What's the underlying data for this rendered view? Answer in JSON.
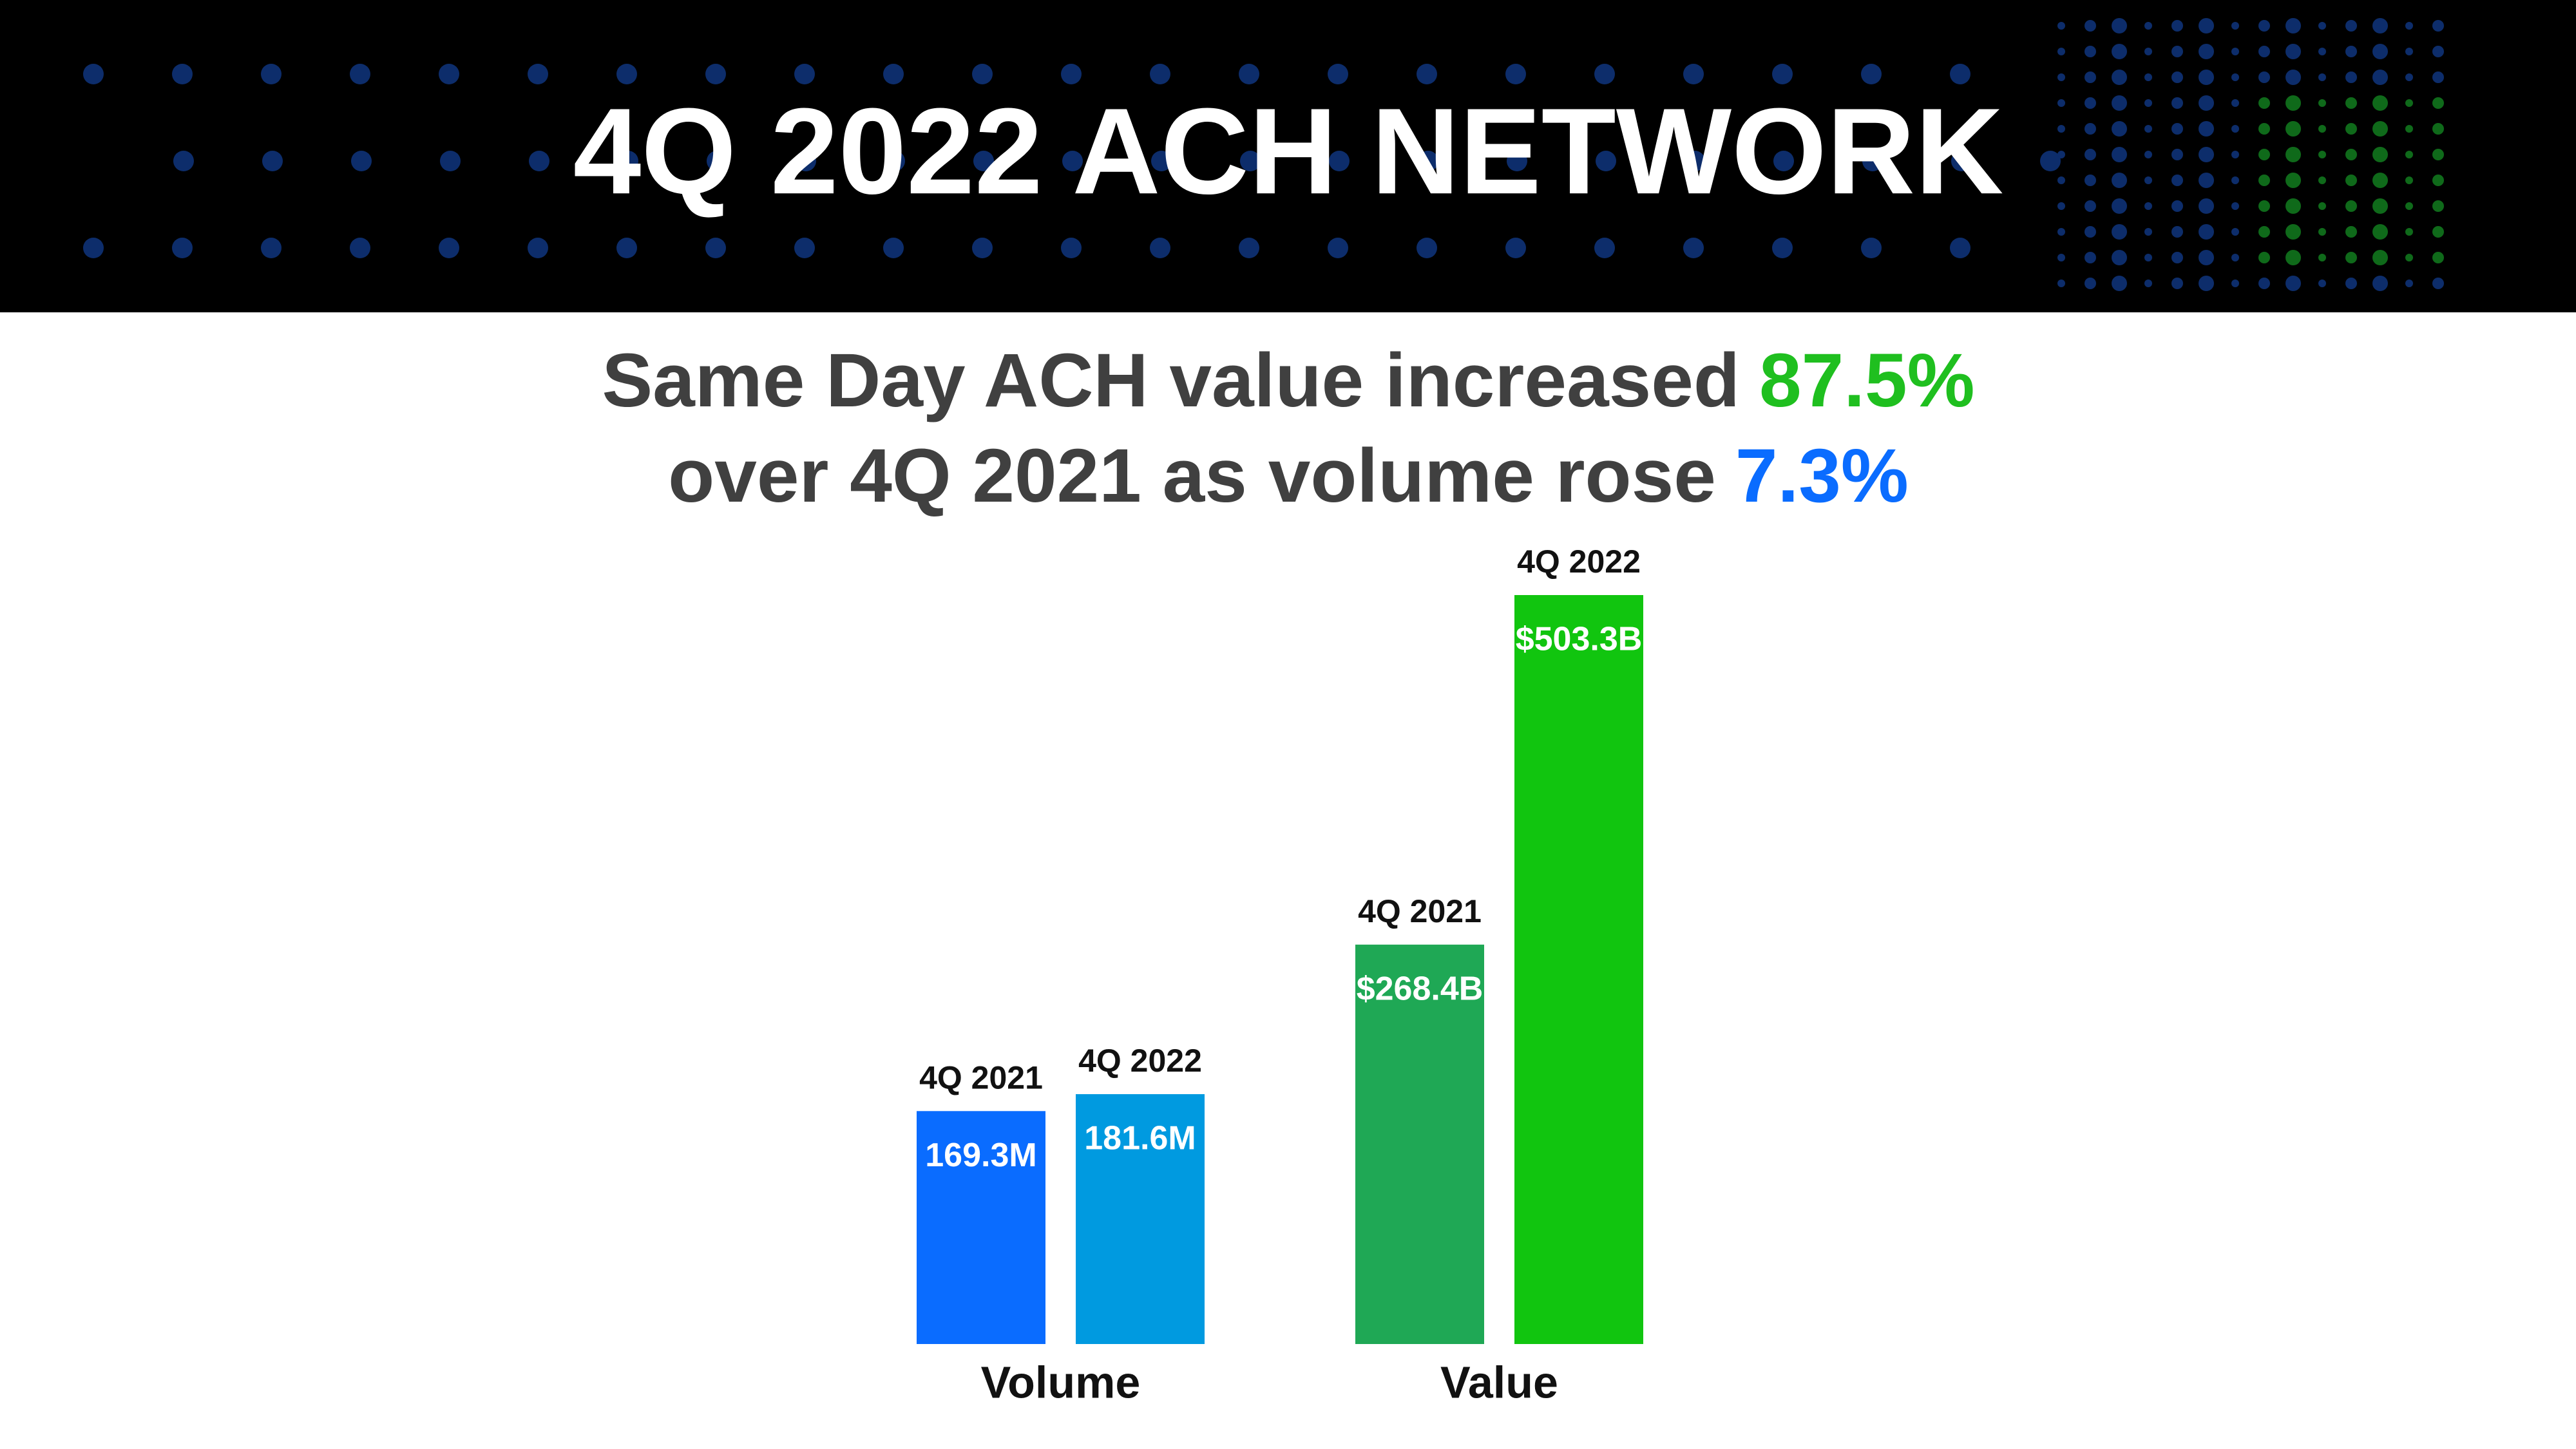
{
  "chart_data": {
    "type": "bar",
    "title": "4Q 2022 ACH NETWORK",
    "subtitle_lines": [
      [
        "Same Day ACH value increased",
        "87.5%"
      ],
      [
        "over 4Q 2021 as volume rose",
        "7.3%"
      ]
    ],
    "groups": [
      {
        "name": "Volume",
        "categories": [
          "4Q 2021",
          "4Q 2022"
        ],
        "values": [
          169.3,
          181.6
        ],
        "value_labels": [
          "169.3M",
          "181.6M"
        ],
        "colors": [
          "#0a6cff",
          "#009ae0"
        ]
      },
      {
        "name": "Value",
        "categories": [
          "4Q 2021",
          "4Q 2022"
        ],
        "values": [
          268.4,
          503.3
        ],
        "value_labels": [
          "$268.4B",
          "$503.3B"
        ],
        "colors": [
          "#1fa855",
          "#11c50f"
        ]
      }
    ]
  }
}
